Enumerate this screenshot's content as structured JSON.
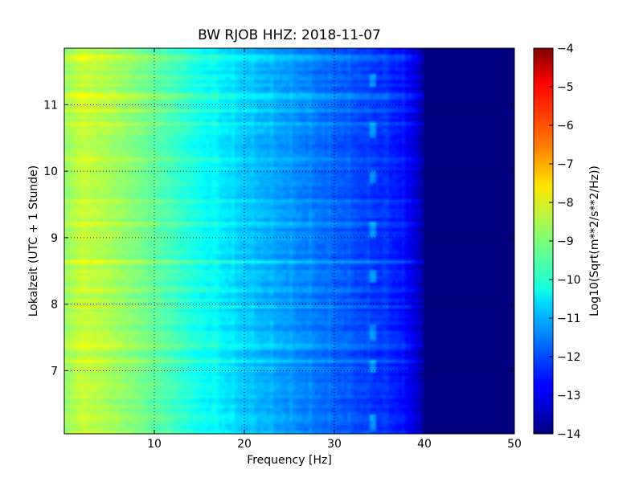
{
  "chart_data": {
    "type": "heatmap",
    "title": "BW RJOB HHZ: 2018-11-07",
    "xlabel": "Frequency [Hz]",
    "ylabel": "Lokalzeit (UTC + 1 Stunde)",
    "xlim": [
      0,
      50
    ],
    "ylim": [
      11.85,
      6.05
    ],
    "x_ticks": [
      10,
      20,
      30,
      40,
      50
    ],
    "y_ticks": [
      7,
      8,
      9,
      10,
      11
    ],
    "grid": true,
    "colormap": "jet",
    "colorbar": {
      "label": "Log10(Sqrt(m**2/s**2/Hz))",
      "min": -14,
      "max": -4,
      "ticks": [
        -4,
        -5,
        -6,
        -7,
        -8,
        -9,
        -10,
        -11,
        -12,
        -13,
        -14
      ]
    },
    "spectrum_profile": {
      "frequency_hz": [
        0,
        2,
        5,
        8,
        10,
        12,
        15,
        18,
        20,
        23,
        26,
        30,
        34,
        37,
        38.5,
        39.5,
        40,
        50
      ],
      "log10_psd": [
        -8.8,
        -8.3,
        -8.6,
        -9.0,
        -9.3,
        -9.6,
        -10.1,
        -10.5,
        -10.8,
        -11.1,
        -11.4,
        -11.8,
        -12.2,
        -12.5,
        -12.9,
        -13.4,
        -14,
        -14
      ]
    },
    "horizontal_bands": [
      {
        "time": 7.15,
        "level": 0.5
      },
      {
        "time": 7.35,
        "level": 0.3
      },
      {
        "time": 7.95,
        "level": 0.4
      },
      {
        "time": 8.05,
        "level": 0.35
      },
      {
        "time": 8.2,
        "level": 0.4
      },
      {
        "time": 8.62,
        "level": 0.5
      },
      {
        "time": 9.2,
        "level": 0.3
      },
      {
        "time": 9.55,
        "level": 0.45
      },
      {
        "time": 10.2,
        "level": 0.3
      },
      {
        "time": 10.72,
        "level": 0.6
      },
      {
        "time": 10.9,
        "level": 0.3
      },
      {
        "time": 11.12,
        "level": 0.45
      },
      {
        "time": 11.7,
        "level": 0.35
      }
    ],
    "tonal_line_hz": 34.3,
    "tonal_glitch_times": [
      6.1,
      6.95,
      7.45,
      8.3,
      9.0,
      9.8,
      10.5,
      11.25
    ]
  }
}
